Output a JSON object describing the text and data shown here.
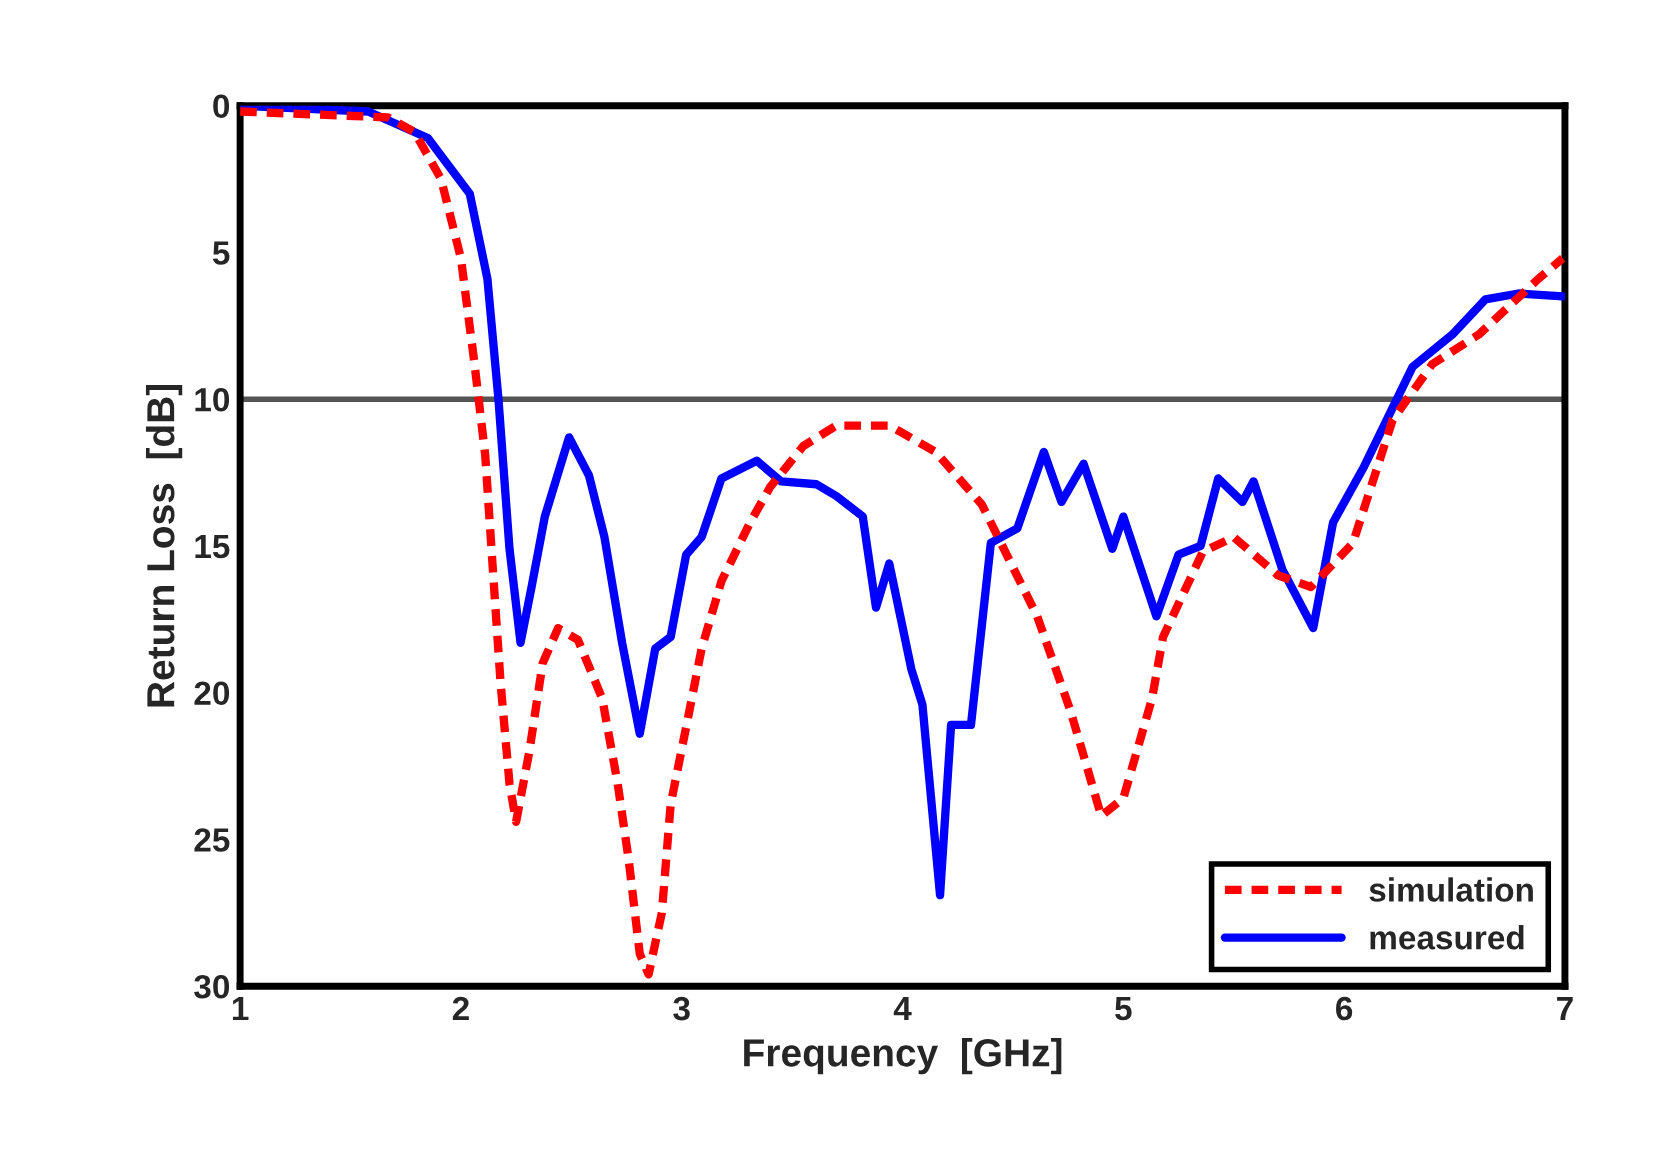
{
  "chart_data": {
    "type": "line",
    "xlabel": "Frequency  [GHz]",
    "ylabel": "Return Loss  [dB]",
    "xlim": [
      1,
      7
    ],
    "ylim": [
      30,
      0
    ],
    "xticks": [
      1,
      2,
      3,
      4,
      5,
      6,
      7
    ],
    "yticks": [
      0,
      5,
      10,
      15,
      20,
      25,
      30
    ],
    "grid": false,
    "legend": "bottom right",
    "ref_lines": [
      {
        "axis": "y",
        "value": 10,
        "color": "#555555"
      }
    ],
    "series": [
      {
        "name": "simulation",
        "color": "#ff0000",
        "line_style": "dashed",
        "x": [
          1.0,
          1.67,
          1.79,
          1.91,
          2.0,
          2.06,
          2.11,
          2.15,
          2.18,
          2.22,
          2.25,
          2.31,
          2.37,
          2.44,
          2.53,
          2.64,
          2.71,
          2.76,
          2.81,
          2.85,
          2.91,
          2.95,
          3.03,
          3.09,
          3.18,
          3.31,
          3.4,
          3.55,
          3.7,
          3.94,
          4.15,
          4.36,
          4.61,
          4.76,
          4.9,
          5.0,
          5.13,
          5.18,
          5.36,
          5.5,
          5.7,
          5.85,
          6.04,
          6.22,
          6.4,
          6.61,
          6.88,
          6.99
        ],
        "values": [
          0.2,
          0.4,
          0.9,
          2.5,
          5.2,
          8.7,
          11.9,
          16.4,
          19.7,
          23.1,
          24.4,
          22.0,
          19.0,
          17.8,
          18.2,
          20.2,
          23.1,
          25.7,
          28.9,
          29.6,
          27.5,
          23.8,
          20.8,
          18.5,
          16.2,
          14.2,
          13.0,
          11.6,
          10.9,
          10.9,
          11.8,
          13.6,
          17.4,
          20.6,
          24.2,
          23.6,
          20.2,
          18.1,
          15.2,
          14.7,
          16.0,
          16.4,
          14.9,
          10.7,
          8.8,
          7.8,
          5.9,
          5.2
        ]
      },
      {
        "name": "measured",
        "color": "#0000ff",
        "line_style": "solid",
        "x": [
          1.0,
          1.58,
          1.85,
          2.04,
          2.12,
          2.17,
          2.22,
          2.27,
          2.32,
          2.38,
          2.49,
          2.58,
          2.65,
          2.73,
          2.81,
          2.88,
          2.95,
          3.02,
          3.09,
          3.18,
          3.34,
          3.45,
          3.61,
          3.7,
          3.82,
          3.88,
          3.94,
          4.04,
          4.09,
          4.17,
          4.22,
          4.31,
          4.4,
          4.52,
          4.64,
          4.72,
          4.82,
          4.95,
          5.0,
          5.15,
          5.25,
          5.35,
          5.43,
          5.54,
          5.59,
          5.72,
          5.86,
          5.95,
          6.09,
          6.31,
          6.49,
          6.64,
          6.79,
          6.99
        ],
        "values": [
          0.0,
          0.2,
          1.1,
          3.0,
          5.9,
          10.0,
          15.1,
          18.3,
          16.4,
          14.0,
          11.3,
          12.6,
          14.7,
          18.3,
          21.4,
          18.5,
          18.1,
          15.3,
          14.7,
          12.7,
          12.1,
          12.8,
          12.9,
          13.3,
          14.0,
          17.1,
          15.6,
          19.2,
          20.4,
          26.9,
          21.1,
          21.1,
          14.9,
          14.4,
          11.8,
          13.5,
          12.2,
          15.1,
          14.0,
          17.4,
          15.3,
          15.0,
          12.7,
          13.5,
          12.8,
          15.8,
          17.8,
          14.2,
          12.3,
          8.9,
          7.8,
          6.6,
          6.4,
          6.5
        ]
      }
    ]
  }
}
